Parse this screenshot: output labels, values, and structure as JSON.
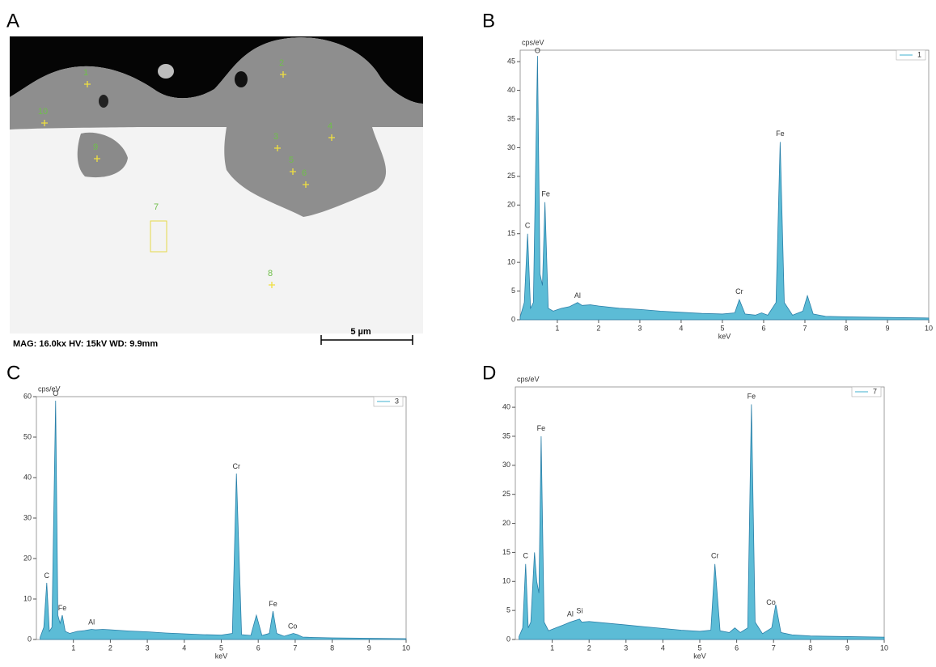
{
  "panels": {
    "a": {
      "letter": "A",
      "info": "MAG: 16.0kx   HV: 15kV   WD: 9.9mm",
      "scale": "5 µm",
      "points": [
        "1",
        "2",
        "3",
        "4",
        "5",
        "6",
        "7",
        "8",
        "9",
        "10"
      ]
    },
    "b": {
      "letter": "B"
    },
    "c": {
      "letter": "C"
    },
    "d": {
      "letter": "D"
    }
  },
  "chart_data": [
    {
      "type": "line",
      "x_label": "keV",
      "y_label": "cps/eV",
      "xlim": [
        0.1,
        10
      ],
      "ylim": [
        0,
        47
      ],
      "xticks": [
        1,
        2,
        3,
        4,
        5,
        6,
        7,
        8,
        9,
        10
      ],
      "yticks": [
        0,
        5,
        10,
        15,
        20,
        25,
        30,
        35,
        40,
        45
      ],
      "x": [
        0.1,
        0.2,
        0.28,
        0.35,
        0.42,
        0.52,
        0.58,
        0.64,
        0.7,
        0.78,
        0.9,
        1.1,
        1.3,
        1.49,
        1.6,
        1.8,
        2.0,
        2.5,
        3.0,
        3.5,
        4.0,
        4.5,
        5.0,
        5.3,
        5.41,
        5.55,
        5.8,
        5.95,
        6.1,
        6.3,
        6.4,
        6.5,
        6.7,
        6.95,
        7.06,
        7.2,
        7.5,
        8,
        9,
        10
      ],
      "series": [
        {
          "name": "1",
          "color": "#3fb0cf",
          "values": [
            0.5,
            3,
            15,
            2,
            3,
            46,
            8,
            6,
            20.5,
            2,
            1.5,
            2,
            2.3,
            3,
            2.5,
            2.6,
            2.4,
            2,
            1.8,
            1.5,
            1.3,
            1.1,
            1,
            1.2,
            3.5,
            1,
            0.8,
            1.2,
            0.8,
            3,
            31,
            3,
            0.8,
            1.5,
            4.2,
            1,
            0.6,
            0.5,
            0.4,
            0.3
          ]
        }
      ],
      "annotations": [
        {
          "text": "O",
          "x": 0.52,
          "y": 46
        },
        {
          "text": "Fe",
          "x": 0.72,
          "y": 21
        },
        {
          "text": "C",
          "x": 0.28,
          "y": 15.5
        },
        {
          "text": "Al",
          "x": 1.49,
          "y": 3.3
        },
        {
          "text": "Cr",
          "x": 5.41,
          "y": 4
        },
        {
          "text": "Fe",
          "x": 6.4,
          "y": 31.5
        }
      ]
    },
    {
      "type": "line",
      "x_label": "keV",
      "y_label": "cps/eV",
      "xlim": [
        0,
        10
      ],
      "ylim": [
        0,
        60
      ],
      "xticks": [
        1,
        2,
        3,
        4,
        5,
        6,
        7,
        8,
        9,
        10
      ],
      "yticks": [
        0,
        10,
        20,
        30,
        40,
        50,
        60
      ],
      "x": [
        0.1,
        0.2,
        0.28,
        0.35,
        0.42,
        0.52,
        0.58,
        0.64,
        0.7,
        0.78,
        0.9,
        1.1,
        1.3,
        1.49,
        1.6,
        1.8,
        2.0,
        2.5,
        3.0,
        3.5,
        4.0,
        4.5,
        5.0,
        5.3,
        5.41,
        5.55,
        5.8,
        5.95,
        6.1,
        6.3,
        6.4,
        6.5,
        6.7,
        6.95,
        7.06,
        7.2,
        7.5,
        8,
        9,
        10
      ],
      "series": [
        {
          "name": "3",
          "color": "#3fb0cf",
          "values": [
            0.5,
            3,
            14,
            2,
            3,
            59,
            6,
            4,
            6,
            2,
            1.5,
            2,
            2.2,
            2.5,
            2.4,
            2.5,
            2.4,
            2.1,
            1.9,
            1.6,
            1.4,
            1.2,
            1.1,
            1.5,
            41,
            1.2,
            1,
            6,
            1,
            1.5,
            7,
            1.5,
            0.8,
            1.5,
            1.2,
            0.6,
            0.5,
            0.4,
            0.3,
            0.2
          ]
        }
      ],
      "annotations": [
        {
          "text": "O",
          "x": 0.52,
          "y": 59.5
        },
        {
          "text": "C",
          "x": 0.28,
          "y": 14.5
        },
        {
          "text": "Fe",
          "x": 0.7,
          "y": 6.5
        },
        {
          "text": "Al",
          "x": 1.49,
          "y": 3
        },
        {
          "text": "Cr",
          "x": 5.41,
          "y": 41.5
        },
        {
          "text": "Fe",
          "x": 6.4,
          "y": 7.5
        },
        {
          "text": "Co",
          "x": 6.93,
          "y": 2
        }
      ]
    },
    {
      "type": "line",
      "x_label": "keV",
      "y_label": "cps/eV",
      "xlim": [
        0,
        10
      ],
      "ylim": [
        0,
        43.5
      ],
      "xticks": [
        1,
        2,
        3,
        4,
        5,
        6,
        7,
        8,
        9,
        10
      ],
      "yticks": [
        0,
        5,
        10,
        15,
        20,
        25,
        30,
        35,
        40
      ],
      "x": [
        0.1,
        0.2,
        0.28,
        0.35,
        0.42,
        0.52,
        0.58,
        0.64,
        0.7,
        0.78,
        0.9,
        1.1,
        1.3,
        1.49,
        1.74,
        1.8,
        2.0,
        2.5,
        3.0,
        3.5,
        4.0,
        4.5,
        5.0,
        5.3,
        5.41,
        5.55,
        5.8,
        5.95,
        6.1,
        6.3,
        6.4,
        6.5,
        6.7,
        6.95,
        7.06,
        7.2,
        7.5,
        8,
        9,
        10
      ],
      "series": [
        {
          "name": "7",
          "color": "#3fb0cf",
          "values": [
            0.5,
            2,
            13,
            2,
            3,
            15,
            10,
            8,
            35,
            3,
            1.5,
            2,
            2.5,
            3,
            3.5,
            3,
            3.1,
            2.8,
            2.5,
            2.2,
            1.9,
            1.6,
            1.4,
            1.6,
            13,
            1.5,
            1.2,
            2,
            1.2,
            2,
            40.5,
            3,
            1,
            2,
            6,
            1.2,
            0.8,
            0.6,
            0.5,
            0.4
          ]
        }
      ],
      "annotations": [
        {
          "text": "Fe",
          "x": 0.7,
          "y": 35.5
        },
        {
          "text": "C",
          "x": 0.28,
          "y": 13.5
        },
        {
          "text": "Al",
          "x": 1.49,
          "y": 3.5
        },
        {
          "text": "Si",
          "x": 1.74,
          "y": 4
        },
        {
          "text": "Cr",
          "x": 5.41,
          "y": 13.5
        },
        {
          "text": "Fe",
          "x": 6.4,
          "y": 41
        },
        {
          "text": "Co",
          "x": 6.93,
          "y": 5.5
        }
      ]
    }
  ]
}
